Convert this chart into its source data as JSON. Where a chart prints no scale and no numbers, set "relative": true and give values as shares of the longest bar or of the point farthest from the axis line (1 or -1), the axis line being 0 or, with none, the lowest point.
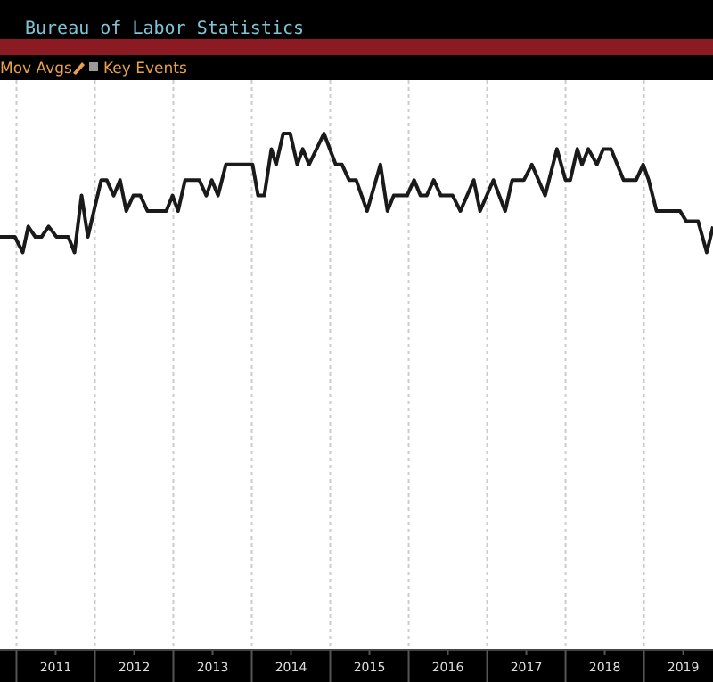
{
  "chart_data": {
    "type": "line",
    "title": "Bureau of Labor Statistics",
    "annotations": [
      "Mov Avgs",
      "Key Events"
    ],
    "relative": true,
    "grid": "x",
    "marker": "none",
    "line_style": "solid",
    "xlim": [
      2010.79,
      2019.88
    ],
    "xticks": [
      {
        "value": 2011,
        "label": null
      },
      {
        "value": 2011.5,
        "label": "2011"
      },
      {
        "value": 2012,
        "label": null
      },
      {
        "value": 2012.5,
        "label": "2012"
      },
      {
        "value": 2013,
        "label": null
      },
      {
        "value": 2013.5,
        "label": "2013"
      },
      {
        "value": 2014,
        "label": null
      },
      {
        "value": 2014.5,
        "label": "2014"
      },
      {
        "value": 2015,
        "label": null
      },
      {
        "value": 2015.5,
        "label": "2015"
      },
      {
        "value": 2016,
        "label": null
      },
      {
        "value": 2016.5,
        "label": "2016"
      },
      {
        "value": 2017,
        "label": null
      },
      {
        "value": 2017.5,
        "label": "2017"
      },
      {
        "value": 2018,
        "label": null
      },
      {
        "value": 2018.5,
        "label": "2018"
      },
      {
        "value": 2019,
        "label": null
      },
      {
        "value": 2019.5,
        "label": "2019"
      }
    ],
    "x": [
      2010.79,
      2010.98,
      2011.08,
      2011.15,
      2011.24,
      2011.32,
      2011.41,
      2011.51,
      2011.66,
      2011.74,
      2011.83,
      2011.91,
      2012.08,
      2012.15,
      2012.24,
      2012.32,
      2012.4,
      2012.49,
      2012.58,
      2012.67,
      2012.91,
      2012.99,
      2013.06,
      2013.15,
      2013.33,
      2013.42,
      2013.49,
      2013.57,
      2013.67,
      2014.01,
      2014.08,
      2014.16,
      2014.25,
      2014.31,
      2014.4,
      2014.49,
      2014.58,
      2014.65,
      2014.73,
      2014.92,
      2015.07,
      2015.15,
      2015.24,
      2015.33,
      2015.47,
      2015.64,
      2015.73,
      2015.81,
      2015.98,
      2016.07,
      2016.15,
      2016.23,
      2016.32,
      2016.41,
      2016.56,
      2016.66,
      2016.83,
      2016.91,
      2017.08,
      2017.23,
      2017.32,
      2017.47,
      2017.57,
      2017.74,
      2017.89,
      2018.0,
      2018.06,
      2018.15,
      2018.21,
      2018.29,
      2018.4,
      2018.48,
      2018.58,
      2018.74,
      2018.9,
      2018.99,
      2019.06,
      2019.16,
      2019.46,
      2019.54,
      2019.69,
      2019.8,
      2019.88
    ],
    "series": [
      {
        "color": "#1a1a1a",
        "values": [
          0.8,
          0.8,
          0.77,
          0.82,
          0.8,
          0.8,
          0.82,
          0.8,
          0.8,
          0.77,
          0.88,
          0.8,
          0.91,
          0.91,
          0.88,
          0.91,
          0.85,
          0.88,
          0.88,
          0.85,
          0.85,
          0.88,
          0.85,
          0.91,
          0.91,
          0.88,
          0.91,
          0.88,
          0.94,
          0.94,
          0.88,
          0.88,
          0.97,
          0.94,
          1,
          1,
          0.94,
          0.97,
          0.94,
          1,
          0.94,
          0.94,
          0.91,
          0.91,
          0.85,
          0.94,
          0.85,
          0.88,
          0.88,
          0.91,
          0.88,
          0.88,
          0.91,
          0.88,
          0.88,
          0.85,
          0.91,
          0.85,
          0.91,
          0.85,
          0.91,
          0.91,
          0.94,
          0.88,
          0.97,
          0.91,
          0.91,
          0.97,
          0.94,
          0.97,
          0.94,
          0.97,
          0.97,
          0.91,
          0.91,
          0.94,
          0.91,
          0.85,
          0.85,
          0.83,
          0.83,
          0.77,
          0.82
        ]
      }
    ]
  }
}
